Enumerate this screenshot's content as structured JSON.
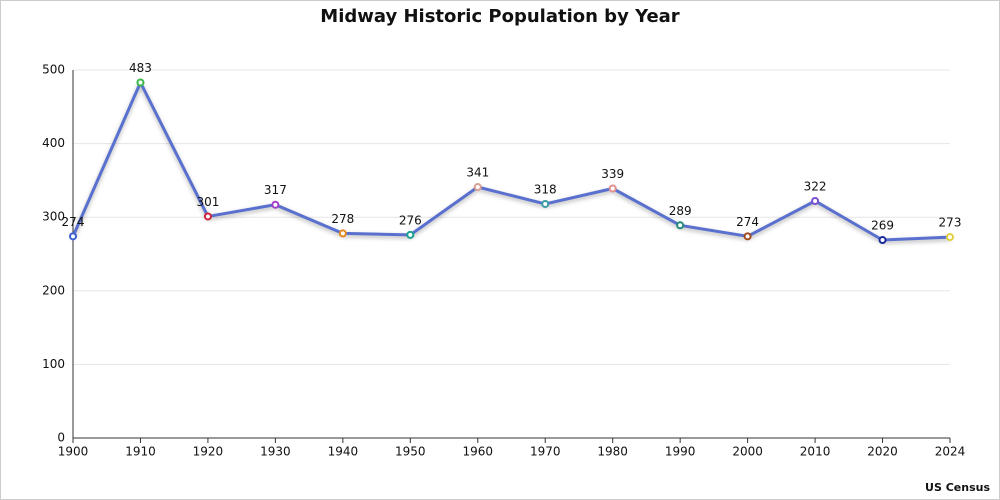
{
  "chart_data": {
    "type": "line",
    "title": "Midway Historic Population by Year",
    "categories": [
      "1900",
      "1910",
      "1920",
      "1930",
      "1940",
      "1950",
      "1960",
      "1970",
      "1980",
      "1990",
      "2000",
      "2010",
      "2020",
      "2024"
    ],
    "values": [
      274,
      483,
      301,
      317,
      278,
      276,
      341,
      318,
      339,
      289,
      274,
      322,
      269,
      273
    ],
    "color": "#5a70cf",
    "point_colors": [
      "#3a5fd0",
      "#3cb84a",
      "#d0213a",
      "#a040c8",
      "#e08a1e",
      "#1aa090",
      "#d8a090",
      "#3a9aa0",
      "#e09090",
      "#208a7a",
      "#a04a20",
      "#7a50d0",
      "#1a2a9a",
      "#e0d040"
    ],
    "ylim": [
      0,
      500
    ],
    "yticks": [
      0,
      100,
      200,
      300,
      400,
      500
    ],
    "grid": true,
    "annotation": "US Census"
  }
}
